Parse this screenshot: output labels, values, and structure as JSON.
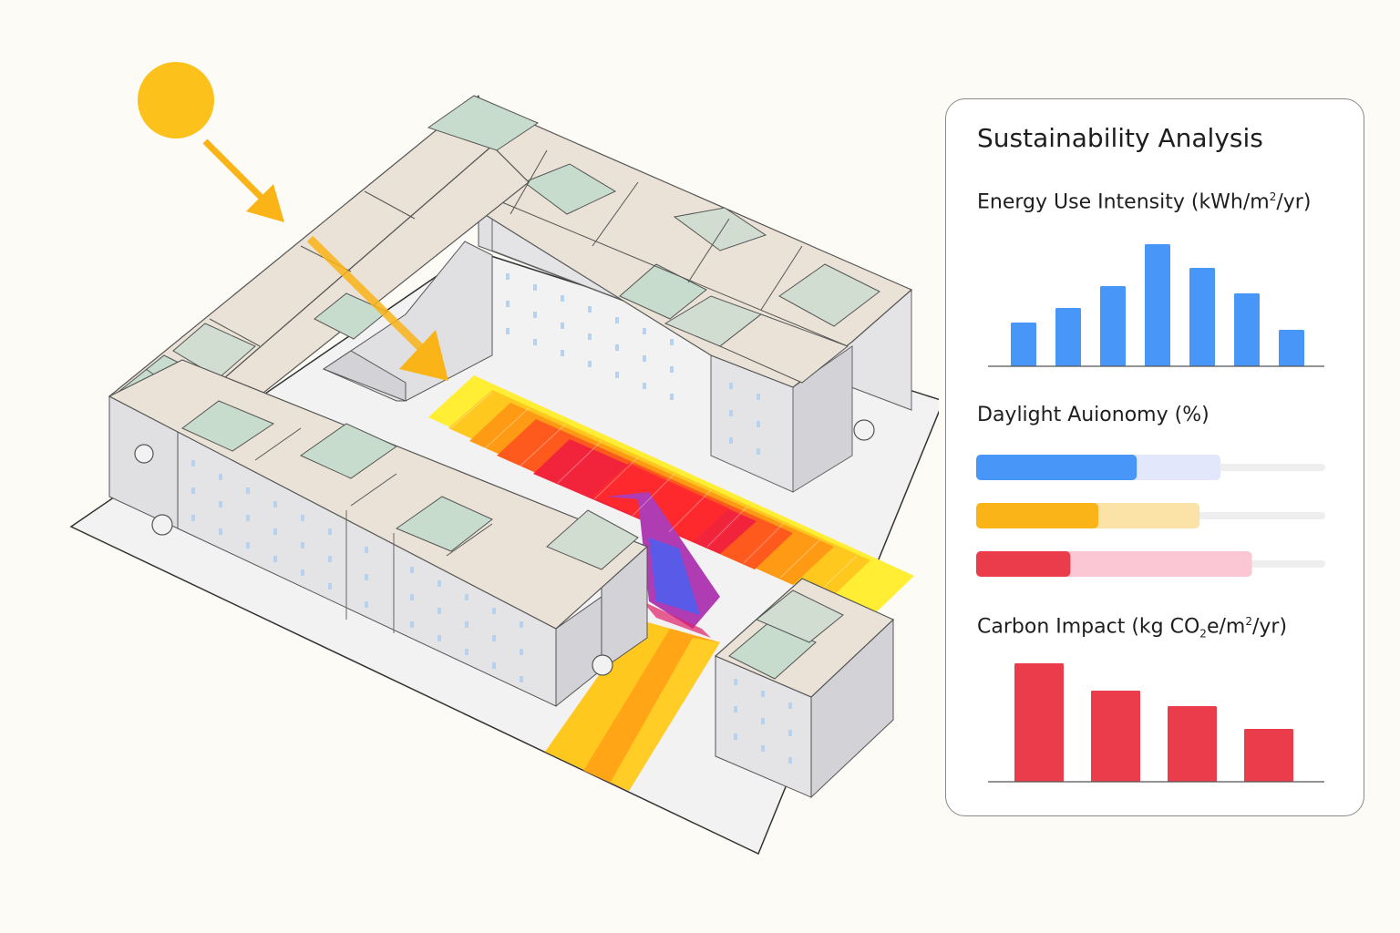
{
  "panel": {
    "title": "Sustainability Analysis"
  },
  "sections": {
    "energy": {
      "label_parts": [
        "Energy Use Intensity (kWh/m",
        "2",
        "/yr)"
      ]
    },
    "daylight": {
      "label": "Daylight Auionomy (%)"
    },
    "carbon": {
      "label_parts": [
        "Carbon Impact (kg CO",
        "2",
        "e/m",
        "2",
        "/yr)"
      ]
    }
  },
  "chart_data": [
    {
      "type": "bar",
      "name_key": "energy",
      "values": [
        48,
        64,
        88,
        134,
        108,
        80,
        40
      ],
      "ylim": [
        0,
        140
      ],
      "color": "#4996f9"
    },
    {
      "type": "bar",
      "name_key": "daylight",
      "orientation": "horizontal",
      "bars": [
        {
          "value": 46,
          "range": 70,
          "color": "#4996f9",
          "range_color": "#e2e7fb"
        },
        {
          "value": 35,
          "range": 64,
          "color": "#fbb418",
          "range_color": "#fbe3a8"
        },
        {
          "value": 27,
          "range": 79,
          "color": "#eb3c4b",
          "range_color": "#fcc7d5"
        }
      ],
      "xlim": [
        0,
        100
      ],
      "track_color": "#eeeeee"
    },
    {
      "type": "bar",
      "name_key": "carbon",
      "values": [
        130,
        100,
        83,
        58
      ],
      "ylim": [
        0,
        140
      ],
      "color": "#eb3c4b"
    }
  ],
  "scene": {
    "sun_color": "#fcc21b",
    "arrow_color": "#fbb418",
    "roof_colors": [
      "#eae2d6",
      "#d2ddd2",
      "#c7dccd"
    ],
    "wall_color": "#e0e0e3",
    "window_color": "#b6d2ec",
    "ground_color": "#f2f2f2",
    "heatmap_colors": [
      "#ffee33",
      "#ffc81f",
      "#ff9a14",
      "#ff5a1e",
      "#f2243c",
      "#b03cb4",
      "#5a5ae8"
    ]
  }
}
